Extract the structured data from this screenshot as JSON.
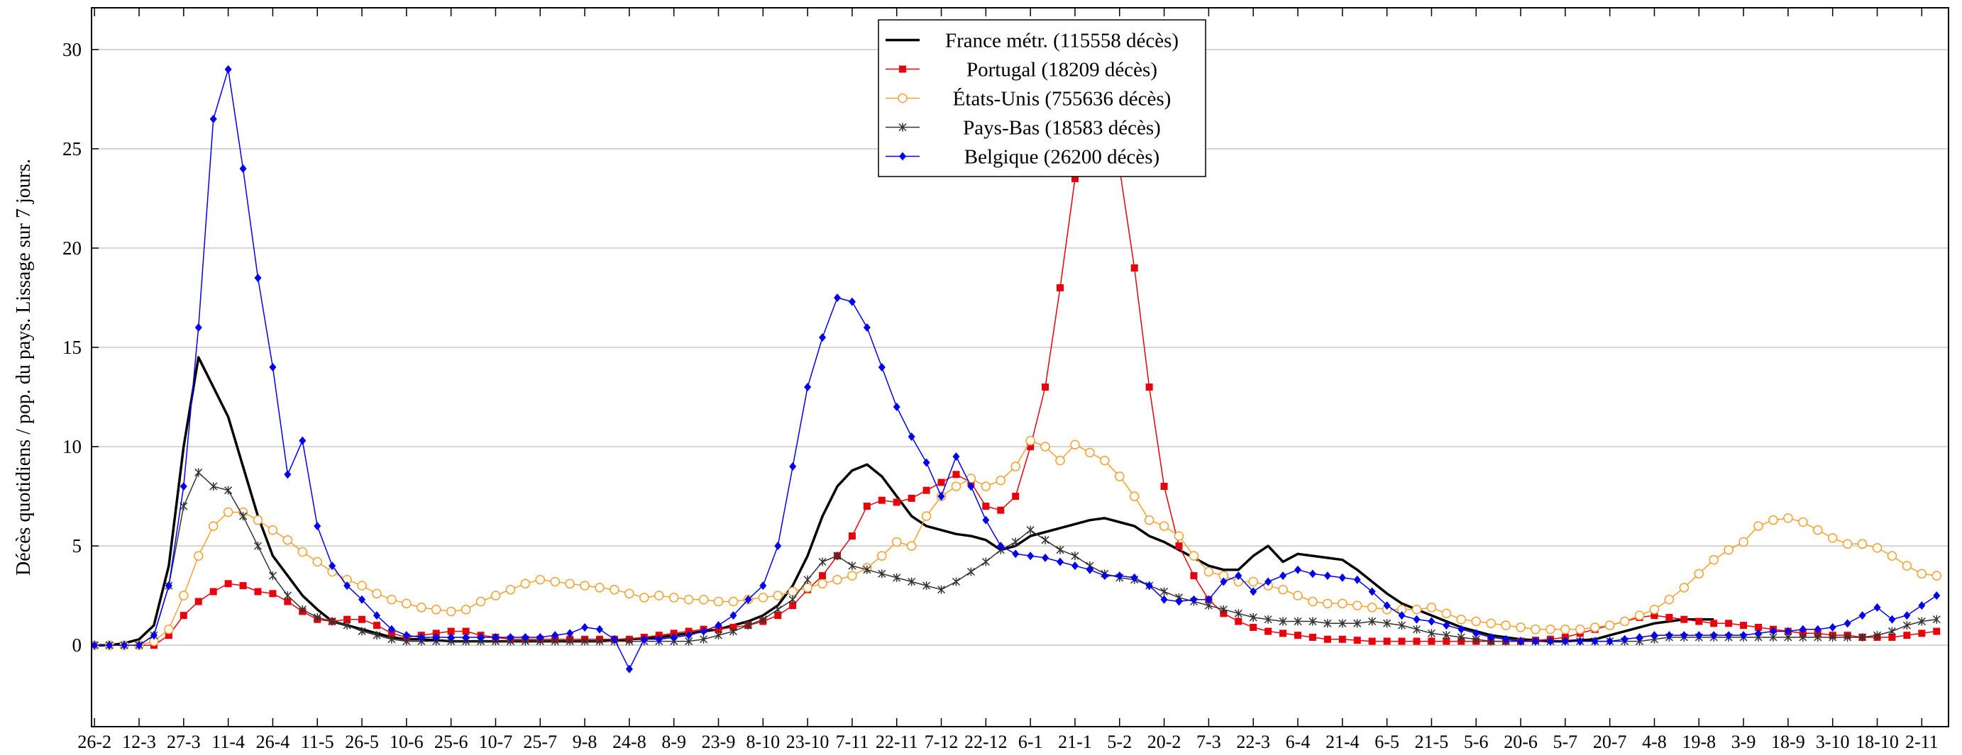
{
  "chart_data": {
    "type": "line",
    "ylabel": "Décès quotidiens / pop. du pays. Lissage sur 7 jours.",
    "xlim": [
      -1,
      624
    ],
    "ylim": [
      -4.1,
      32.1
    ],
    "yticks": [
      0,
      5,
      10,
      15,
      20,
      25,
      30
    ],
    "grid": true,
    "legend": "top",
    "xticks": [
      {
        "value": 0,
        "label": "26-2"
      },
      {
        "value": 15,
        "label": "12-3"
      },
      {
        "value": 30,
        "label": "27-3"
      },
      {
        "value": 45,
        "label": "11-4"
      },
      {
        "value": 60,
        "label": "26-4"
      },
      {
        "value": 75,
        "label": "11-5"
      },
      {
        "value": 90,
        "label": "26-5"
      },
      {
        "value": 105,
        "label": "10-6"
      },
      {
        "value": 120,
        "label": "25-6"
      },
      {
        "value": 135,
        "label": "10-7"
      },
      {
        "value": 150,
        "label": "25-7"
      },
      {
        "value": 165,
        "label": "9-8"
      },
      {
        "value": 180,
        "label": "24-8"
      },
      {
        "value": 195,
        "label": "8-9"
      },
      {
        "value": 210,
        "label": "23-9"
      },
      {
        "value": 225,
        "label": "8-10"
      },
      {
        "value": 240,
        "label": "23-10"
      },
      {
        "value": 255,
        "label": "7-11"
      },
      {
        "value": 270,
        "label": "22-11"
      },
      {
        "value": 285,
        "label": "7-12"
      },
      {
        "value": 300,
        "label": "22-12"
      },
      {
        "value": 315,
        "label": "6-1"
      },
      {
        "value": 330,
        "label": "21-1"
      },
      {
        "value": 345,
        "label": "5-2"
      },
      {
        "value": 360,
        "label": "20-2"
      },
      {
        "value": 375,
        "label": "7-3"
      },
      {
        "value": 390,
        "label": "22-3"
      },
      {
        "value": 405,
        "label": "6-4"
      },
      {
        "value": 420,
        "label": "21-4"
      },
      {
        "value": 435,
        "label": "6-5"
      },
      {
        "value": 450,
        "label": "21-5"
      },
      {
        "value": 465,
        "label": "5-6"
      },
      {
        "value": 480,
        "label": "20-6"
      },
      {
        "value": 495,
        "label": "5-7"
      },
      {
        "value": 510,
        "label": "20-7"
      },
      {
        "value": 525,
        "label": "4-8"
      },
      {
        "value": 540,
        "label": "19-8"
      },
      {
        "value": 555,
        "label": "3-9"
      },
      {
        "value": 570,
        "label": "18-9"
      },
      {
        "value": 585,
        "label": "3-10"
      },
      {
        "value": 600,
        "label": "18-10"
      },
      {
        "value": 615,
        "label": "2-11"
      }
    ],
    "x": [
      0,
      5,
      10,
      15,
      20,
      25,
      30,
      35,
      40,
      45,
      50,
      55,
      60,
      65,
      70,
      75,
      80,
      85,
      90,
      95,
      100,
      105,
      110,
      115,
      120,
      125,
      130,
      135,
      140,
      145,
      150,
      155,
      160,
      165,
      170,
      175,
      180,
      185,
      190,
      195,
      200,
      205,
      210,
      215,
      220,
      225,
      230,
      235,
      240,
      245,
      250,
      255,
      260,
      265,
      270,
      275,
      280,
      285,
      290,
      295,
      300,
      305,
      310,
      315,
      320,
      325,
      330,
      335,
      340,
      345,
      350,
      355,
      360,
      365,
      370,
      375,
      380,
      385,
      390,
      395,
      400,
      405,
      410,
      415,
      420,
      425,
      430,
      435,
      440,
      445,
      450,
      455,
      460,
      465,
      470,
      475,
      480,
      485,
      490,
      495,
      500,
      505,
      510,
      515,
      520,
      525,
      530,
      535,
      540,
      545,
      550,
      555,
      560,
      565,
      570,
      575,
      580,
      585,
      590,
      595,
      600,
      605,
      610,
      615,
      620
    ],
    "series": [
      {
        "name": "France métr. (115558 décès)",
        "color": "#000000",
        "marker": "none",
        "values": [
          0,
          0,
          0.1,
          0.3,
          1,
          4,
          10,
          14.5,
          13,
          11.5,
          9,
          6.5,
          4.5,
          3.5,
          2.5,
          1.8,
          1.2,
          1,
          0.8,
          0.6,
          0.4,
          0.3,
          0.3,
          0.25,
          0.2,
          0.2,
          0.2,
          0.2,
          0.2,
          0.2,
          0.2,
          0.2,
          0.2,
          0.2,
          0.2,
          0.25,
          0.3,
          0.35,
          0.4,
          0.5,
          0.6,
          0.7,
          0.8,
          1,
          1.2,
          1.5,
          2,
          3,
          4.5,
          6.5,
          8,
          8.8,
          9.1,
          8.5,
          7.5,
          6.5,
          6,
          5.8,
          5.6,
          5.5,
          5.3,
          4.8,
          5,
          5.5,
          5.7,
          5.9,
          6.1,
          6.3,
          6.4,
          6.2,
          6,
          5.5,
          5.2,
          4.8,
          4.4,
          4,
          3.8,
          3.8,
          4.5,
          5,
          4.2,
          4.6,
          4.5,
          4.4,
          4.3,
          3.8,
          3.2,
          2.6,
          2.1,
          1.8,
          1.5,
          1.2,
          0.9,
          0.7,
          0.5,
          0.4,
          0.3,
          0.25,
          0.2,
          0.2,
          0.25,
          0.3,
          0.5,
          0.7,
          0.9,
          1.1,
          1.2,
          1.3,
          1.3,
          1.3,
          null,
          null,
          null,
          null,
          null,
          null,
          null,
          null,
          null,
          null,
          null,
          null,
          null,
          null,
          null
        ]
      },
      {
        "name": "Portugal (18209 décès)",
        "color": "#e8000b",
        "marker": "square",
        "values": [
          0,
          0,
          0,
          0,
          0,
          0.5,
          1.5,
          2.2,
          2.7,
          3.1,
          3,
          2.7,
          2.6,
          2.2,
          1.7,
          1.3,
          1.2,
          1.3,
          1.3,
          1,
          0.6,
          0.4,
          0.5,
          0.6,
          0.7,
          0.7,
          0.5,
          0.4,
          0.3,
          0.3,
          0.3,
          0.3,
          0.3,
          0.3,
          0.3,
          0.3,
          0.3,
          0.4,
          0.5,
          0.6,
          0.7,
          0.8,
          0.8,
          0.9,
          1,
          1.2,
          1.5,
          2,
          2.8,
          3.5,
          4.5,
          5.5,
          7,
          7.3,
          7.2,
          7.4,
          7.8,
          8.2,
          8.6,
          8.2,
          7,
          6.8,
          7.5,
          10,
          13,
          18,
          23.5,
          28,
          29,
          24,
          19,
          13,
          8,
          5,
          3.5,
          2.3,
          1.6,
          1.2,
          0.9,
          0.7,
          0.6,
          0.5,
          0.4,
          0.3,
          0.3,
          0.25,
          0.2,
          0.2,
          0.2,
          0.2,
          0.2,
          0.2,
          0.2,
          0.2,
          0.2,
          0.2,
          0.2,
          0.25,
          0.3,
          0.4,
          0.6,
          0.8,
          1,
          1.2,
          1.4,
          1.5,
          1.4,
          1.3,
          1.2,
          1.1,
          1.1,
          1,
          0.9,
          0.8,
          0.7,
          0.6,
          0.6,
          0.5,
          0.5,
          0.4,
          0.4,
          0.4,
          0.5,
          0.6,
          0.7
        ]
      },
      {
        "name": "États-Unis (755636 décès)",
        "color": "#f5a030",
        "marker": "circle",
        "values": [
          0,
          0,
          0,
          0,
          0.2,
          0.8,
          2.5,
          4.5,
          6,
          6.7,
          6.7,
          6.3,
          5.8,
          5.3,
          4.7,
          4.2,
          3.7,
          3.3,
          3,
          2.6,
          2.3,
          2.1,
          1.9,
          1.8,
          1.7,
          1.8,
          2.2,
          2.5,
          2.8,
          3.1,
          3.3,
          3.2,
          3.1,
          3,
          2.9,
          2.8,
          2.6,
          2.4,
          2.5,
          2.4,
          2.3,
          2.3,
          2.2,
          2.2,
          2.3,
          2.4,
          2.5,
          2.7,
          2.9,
          3.1,
          3.3,
          3.5,
          3.9,
          4.5,
          5.2,
          5,
          6.5,
          7.5,
          8,
          8.4,
          8,
          8.3,
          9,
          10.3,
          10,
          9.3,
          10.1,
          9.7,
          9.3,
          8.5,
          7.5,
          6.3,
          6,
          5.5,
          4.5,
          3.7,
          3.5,
          3.2,
          3.2,
          3,
          2.8,
          2.5,
          2.2,
          2.1,
          2.1,
          2,
          1.9,
          1.8,
          1.8,
          1.8,
          1.9,
          1.6,
          1.3,
          1.2,
          1.1,
          1,
          0.9,
          0.8,
          0.8,
          0.8,
          0.8,
          0.9,
          1,
          1.2,
          1.5,
          1.8,
          2.3,
          2.9,
          3.6,
          4.3,
          4.8,
          5.2,
          6,
          6.3,
          6.4,
          6.2,
          5.8,
          5.4,
          5.1,
          5.1,
          4.9,
          4.5,
          4,
          3.6,
          3.5
        ]
      },
      {
        "name": "Pays-Bas (18583 décès)",
        "color": "#333333",
        "marker": "star",
        "values": [
          0,
          0,
          0,
          0,
          0.5,
          3,
          7,
          8.7,
          8,
          7.8,
          6.5,
          5,
          3.5,
          2.5,
          1.8,
          1.4,
          1.2,
          1,
          0.7,
          0.5,
          0.3,
          0.2,
          0.2,
          0.2,
          0.2,
          0.2,
          0.2,
          0.2,
          0.2,
          0.2,
          0.2,
          0.2,
          0.2,
          0.2,
          0.2,
          0.2,
          0.2,
          0.2,
          0.2,
          0.2,
          0.2,
          0.3,
          0.5,
          0.7,
          1,
          1.3,
          1.8,
          2.3,
          3.3,
          4.2,
          4.5,
          4,
          3.8,
          3.6,
          3.4,
          3.2,
          3,
          2.8,
          3.2,
          3.7,
          4.2,
          4.8,
          5.2,
          5.8,
          5.3,
          4.8,
          4.5,
          4,
          3.6,
          3.4,
          3.3,
          3,
          2.7,
          2.4,
          2.2,
          2,
          1.8,
          1.6,
          1.4,
          1.3,
          1.2,
          1.2,
          1.2,
          1.1,
          1.1,
          1.1,
          1.2,
          1.1,
          1,
          0.8,
          0.6,
          0.5,
          0.4,
          0.3,
          0.2,
          0.2,
          0.2,
          0.2,
          0.2,
          0.2,
          0.2,
          0.2,
          0.2,
          0.2,
          0.2,
          0.3,
          0.4,
          0.4,
          0.4,
          0.4,
          0.4,
          0.4,
          0.4,
          0.4,
          0.4,
          0.4,
          0.4,
          0.4,
          0.4,
          0.4,
          0.5,
          0.7,
          1,
          1.2,
          1.3
        ]
      },
      {
        "name": "Belgique (26200 décès)",
        "color": "#0000ee",
        "marker": "diamond",
        "values": [
          0,
          0,
          0,
          0,
          0.5,
          3,
          8,
          16,
          26.5,
          29,
          24,
          18.5,
          14,
          8.6,
          10.3,
          6,
          4,
          3,
          2.3,
          1.5,
          0.8,
          0.5,
          0.4,
          0.4,
          0.4,
          0.4,
          0.4,
          0.4,
          0.4,
          0.4,
          0.4,
          0.5,
          0.6,
          0.9,
          0.8,
          0.3,
          -1.2,
          0.3,
          0.3,
          0.4,
          0.5,
          0.7,
          1,
          1.5,
          2.3,
          3,
          5,
          9,
          13,
          15.5,
          17.5,
          17.3,
          16,
          14,
          12,
          10.5,
          9.2,
          7.5,
          9.5,
          8,
          6.3,
          5,
          4.6,
          4.5,
          4.4,
          4.2,
          4,
          3.8,
          3.5,
          3.5,
          3.4,
          3,
          2.3,
          2.2,
          2.3,
          2.3,
          3.2,
          3.5,
          2.7,
          3.2,
          3.5,
          3.8,
          3.6,
          3.5,
          3.4,
          3.3,
          2.7,
          2,
          1.5,
          1.3,
          1.2,
          1,
          0.8,
          0.6,
          0.4,
          0.3,
          0.2,
          0.2,
          0.2,
          0.2,
          0.2,
          0.2,
          0.2,
          0.3,
          0.4,
          0.5,
          0.5,
          0.5,
          0.5,
          0.5,
          0.5,
          0.5,
          0.6,
          0.7,
          0.7,
          0.8,
          0.8,
          0.9,
          1.1,
          1.5,
          1.9,
          1.3,
          1.5,
          2,
          2.5
        ]
      }
    ]
  }
}
